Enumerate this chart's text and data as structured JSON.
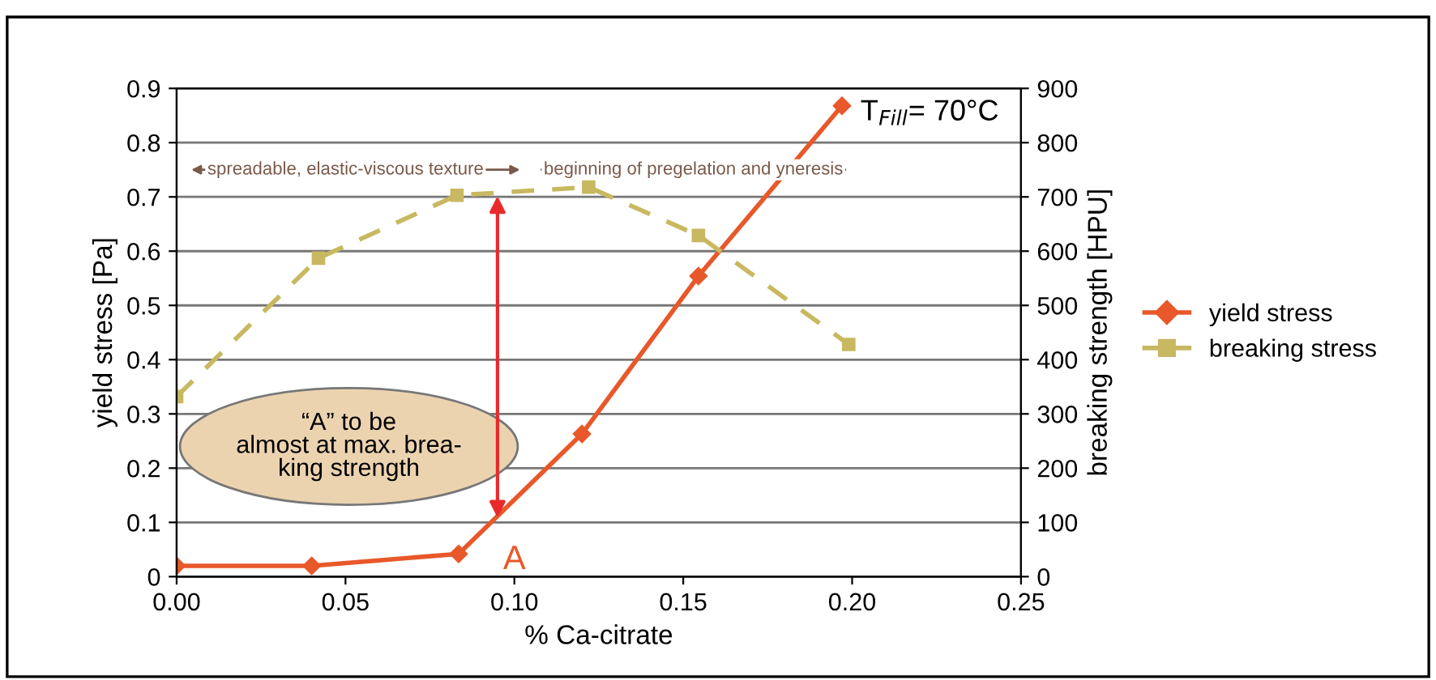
{
  "chart_data": {
    "type": "line",
    "xlabel": "% Ca-citrate",
    "ylabel": "yield stress [Pa]",
    "y2label": "breaking strength [HPU]",
    "xlim": [
      0,
      0.25
    ],
    "xticks": [
      {
        "value": 0,
        "label": "0.00"
      },
      {
        "value": 0.05,
        "label": "0.05"
      },
      {
        "value": 0.1,
        "label": "0.10"
      },
      {
        "value": 0.15,
        "label": "0.15"
      },
      {
        "value": 0.2,
        "label": "0.20"
      },
      {
        "value": 0.25,
        "label": "0.25"
      }
    ],
    "ylim": [
      0,
      0.9
    ],
    "yticks": [
      0,
      0.1,
      0.2,
      0.3,
      0.4,
      0.5,
      0.6,
      0.7,
      0.8,
      0.9
    ],
    "y2lim": [
      0,
      900
    ],
    "y2ticks": [
      0,
      100,
      200,
      300,
      400,
      500,
      600,
      700,
      800,
      900
    ],
    "grid": "y",
    "legend": "right",
    "series": [
      {
        "name": "yield stress",
        "color": "#e8582a",
        "marker": "diamond",
        "line_style": "solid",
        "x": [
          0,
          0.04,
          0.0835,
          0.12,
          0.1545,
          0.197
        ],
        "values": [
          0.02,
          0.02,
          0.042,
          0.263,
          0.554,
          0.868
        ]
      },
      {
        "name": "breaking stress",
        "color": "#c8b860",
        "marker": "square",
        "line_style": "dashed",
        "axis": "y2",
        "x": [
          0,
          0.042,
          0.083,
          0.122,
          0.1545,
          0.199
        ],
        "values": [
          332,
          587,
          703,
          718,
          629,
          428
        ]
      }
    ],
    "annotations": [
      "spreadable, elastic-viscous texture",
      "beginning of pregelation and yneresis",
      "T$_{Fill}$= 70°C",
      "“A” to be\nalmost at max. brea-\nking strength",
      "A"
    ]
  }
}
